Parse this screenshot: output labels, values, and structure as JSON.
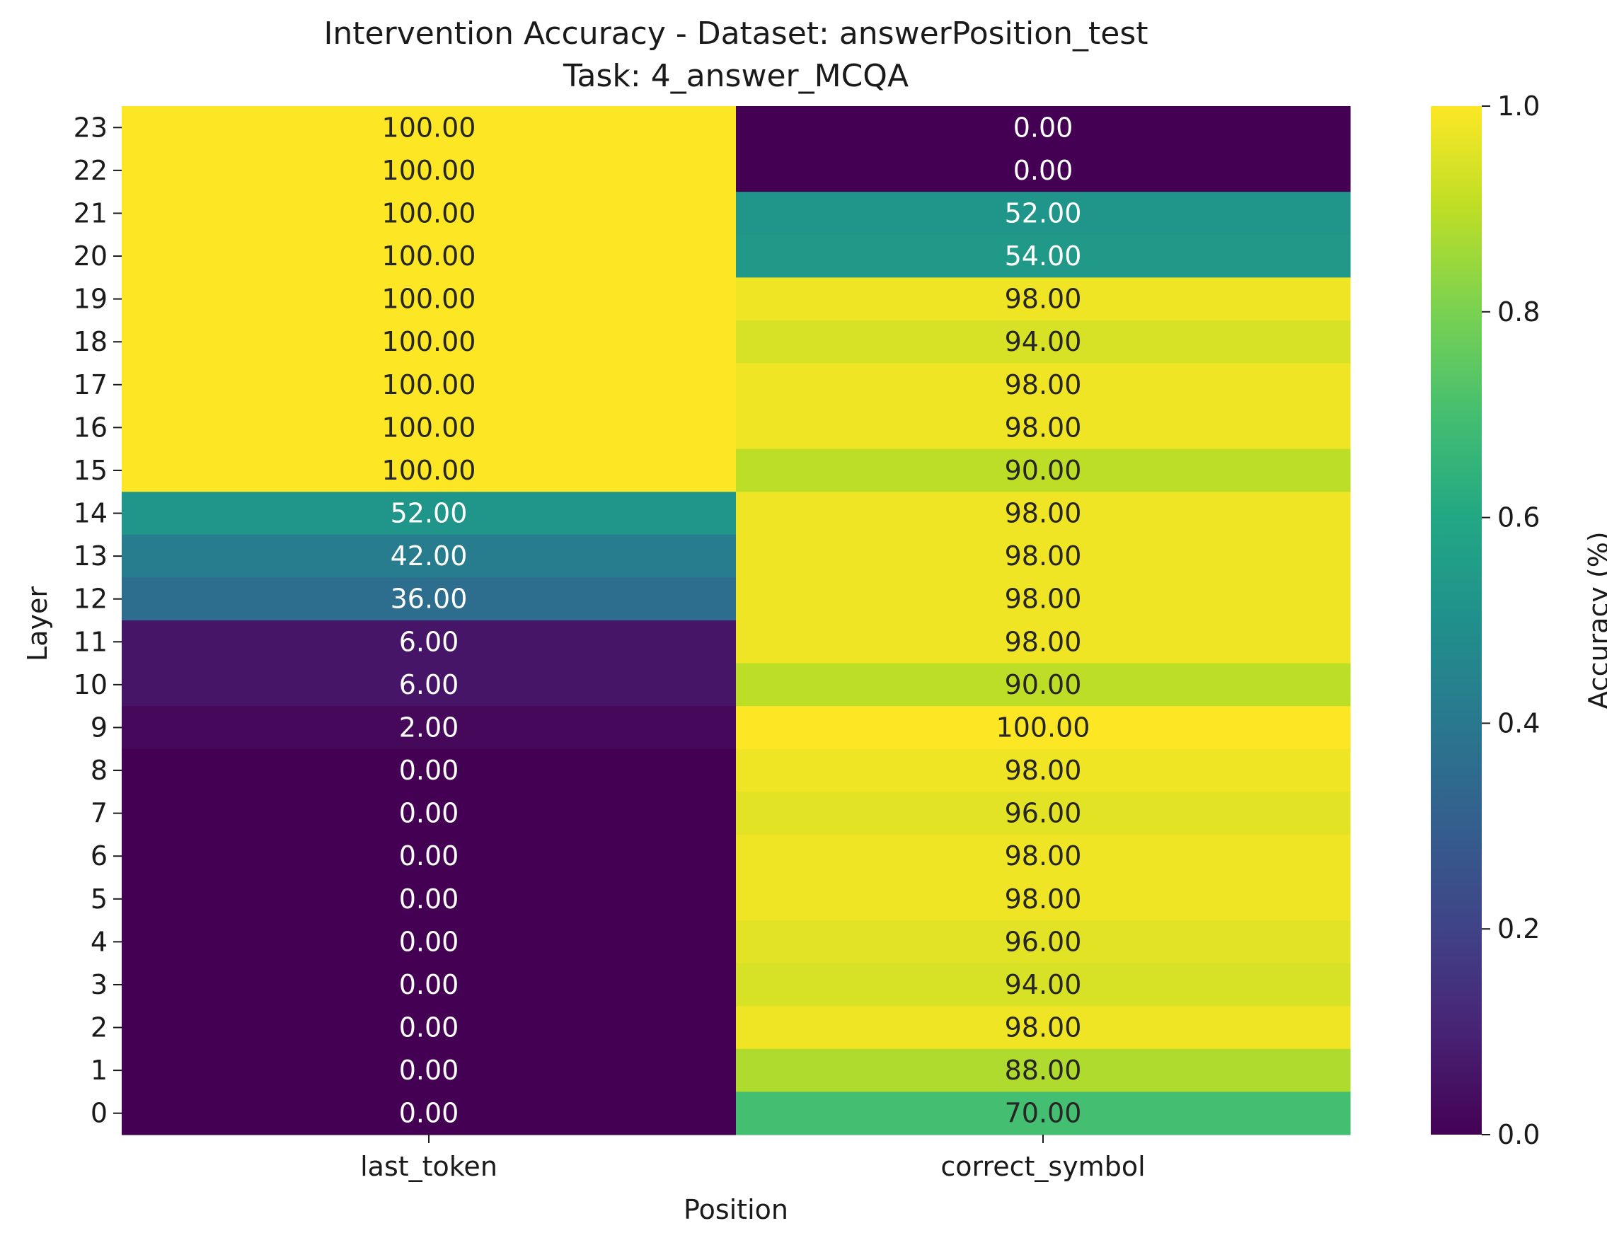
{
  "chart_data": {
    "type": "heatmap",
    "title": "Intervention Accuracy - Dataset: answerPosition_test",
    "subtitle": "Task: 4_answer_MCQA",
    "xlabel": "Position",
    "ylabel": "Layer",
    "colorbar_label": "Accuracy (%)",
    "colormap": "viridis",
    "color_range": [
      0.0,
      1.0
    ],
    "colorbar_ticks": [
      "0.0",
      "0.2",
      "0.4",
      "0.6",
      "0.8",
      "1.0"
    ],
    "columns": [
      "last_token",
      "correct_symbol"
    ],
    "rows": [
      "23",
      "22",
      "21",
      "20",
      "19",
      "18",
      "17",
      "16",
      "15",
      "14",
      "13",
      "12",
      "11",
      "10",
      "9",
      "8",
      "7",
      "6",
      "5",
      "4",
      "3",
      "2",
      "1",
      "0"
    ],
    "values": [
      [
        100,
        0
      ],
      [
        100,
        0
      ],
      [
        100,
        52
      ],
      [
        100,
        54
      ],
      [
        100,
        98
      ],
      [
        100,
        94
      ],
      [
        100,
        98
      ],
      [
        100,
        98
      ],
      [
        100,
        90
      ],
      [
        52,
        98
      ],
      [
        42,
        98
      ],
      [
        36,
        98
      ],
      [
        6,
        98
      ],
      [
        6,
        90
      ],
      [
        2,
        100
      ],
      [
        0,
        98
      ],
      [
        0,
        96
      ],
      [
        0,
        98
      ],
      [
        0,
        98
      ],
      [
        0,
        96
      ],
      [
        0,
        94
      ],
      [
        0,
        98
      ],
      [
        0,
        88
      ],
      [
        0,
        70
      ]
    ],
    "cell_labels": [
      [
        "100.00",
        "0.00"
      ],
      [
        "100.00",
        "0.00"
      ],
      [
        "100.00",
        "52.00"
      ],
      [
        "100.00",
        "54.00"
      ],
      [
        "100.00",
        "98.00"
      ],
      [
        "100.00",
        "94.00"
      ],
      [
        "100.00",
        "98.00"
      ],
      [
        "100.00",
        "98.00"
      ],
      [
        "100.00",
        "90.00"
      ],
      [
        "52.00",
        "98.00"
      ],
      [
        "42.00",
        "98.00"
      ],
      [
        "36.00",
        "98.00"
      ],
      [
        "6.00",
        "98.00"
      ],
      [
        "6.00",
        "90.00"
      ],
      [
        "2.00",
        "100.00"
      ],
      [
        "0.00",
        "98.00"
      ],
      [
        "0.00",
        "96.00"
      ],
      [
        "0.00",
        "98.00"
      ],
      [
        "0.00",
        "98.00"
      ],
      [
        "0.00",
        "96.00"
      ],
      [
        "0.00",
        "94.00"
      ],
      [
        "0.00",
        "98.00"
      ],
      [
        "0.00",
        "88.00"
      ],
      [
        "0.00",
        "70.00"
      ]
    ]
  }
}
